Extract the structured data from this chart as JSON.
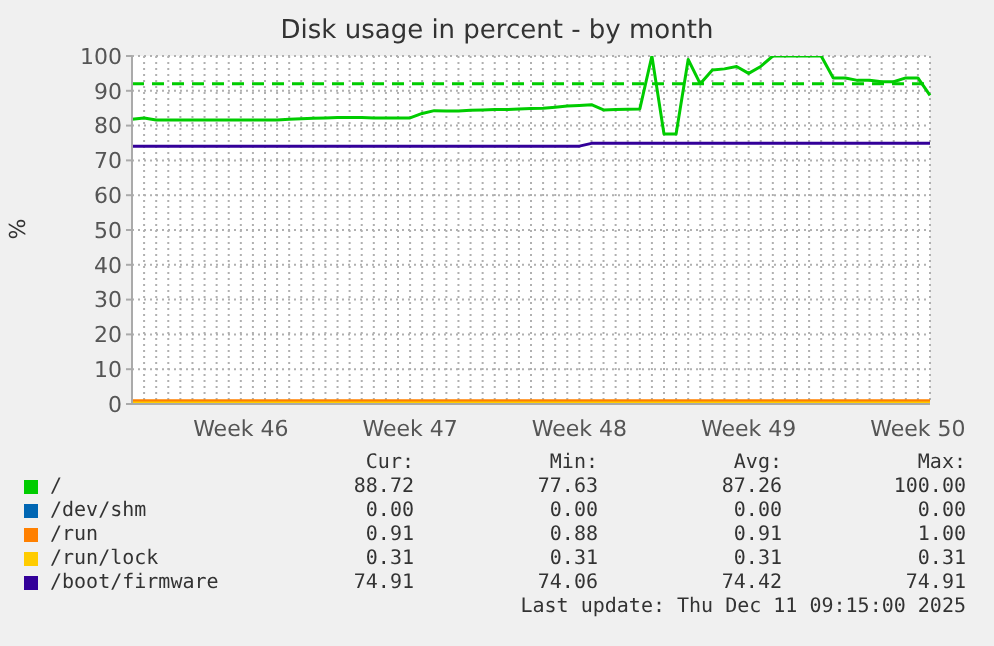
{
  "chart_data": {
    "type": "line",
    "title": "Disk usage in percent - by month",
    "ylabel": "%",
    "categories": [
      null,
      null,
      null,
      null,
      null,
      null,
      null,
      null,
      null,
      "Week 46",
      null,
      null,
      null,
      null,
      null,
      null,
      null,
      null,
      null,
      null,
      null,
      null,
      null,
      "Week 47",
      null,
      null,
      null,
      null,
      null,
      null,
      null,
      null,
      null,
      null,
      null,
      null,
      null,
      "Week 48",
      null,
      null,
      null,
      null,
      null,
      null,
      null,
      null,
      null,
      null,
      null,
      null,
      null,
      "Week 49",
      null,
      null,
      null,
      null,
      null,
      null,
      null,
      null,
      null,
      null,
      null,
      null,
      null,
      "Week 50",
      null
    ],
    "ylim": [
      0,
      100
    ],
    "yticks": [
      0,
      10,
      20,
      30,
      40,
      50,
      60,
      70,
      80,
      90,
      100
    ],
    "grid": true,
    "legend": "bottom",
    "marker": "none",
    "line_style": "solid",
    "ref_lines": [
      {
        "axis": "y",
        "value": 92,
        "color": "#00cc00",
        "line_style": "dashed"
      }
    ],
    "series": [
      {
        "name": "/",
        "color": "#00cc00",
        "values": [
          81.8,
          82.2,
          81.6,
          81.6,
          81.6,
          81.6,
          81.6,
          81.6,
          81.6,
          81.6,
          81.6,
          81.6,
          81.6,
          81.8,
          82,
          82.1,
          82.2,
          82.3,
          82.3,
          82.3,
          82.2,
          82.2,
          82.2,
          82.2,
          83.5,
          84.3,
          84.2,
          84.2,
          84.4,
          84.5,
          84.6,
          84.6,
          84.8,
          84.9,
          85,
          85.3,
          85.6,
          85.8,
          86,
          84.5,
          84.6,
          84.7,
          84.8,
          100,
          77.6,
          77.6,
          99,
          92,
          96,
          96.3,
          97,
          95,
          97,
          100,
          100,
          100,
          100,
          100,
          93.7,
          93.7,
          93,
          93,
          92.6,
          92.6,
          93.7,
          93.7,
          88.7
        ]
      },
      {
        "name": "/dev/shm",
        "color": "#0066b3",
        "values": [
          null,
          null,
          null,
          null,
          null,
          null,
          null,
          null,
          null,
          null,
          null,
          null,
          null,
          null,
          null,
          null,
          null,
          null,
          null,
          null,
          null,
          null,
          null,
          null,
          null,
          null,
          null,
          null,
          null,
          null,
          null,
          null,
          null,
          null,
          null,
          null,
          null,
          null,
          null,
          null,
          null,
          null,
          null,
          null,
          null,
          null,
          null,
          null,
          null,
          null,
          null,
          null,
          null,
          null,
          null,
          null,
          null,
          null,
          null,
          null,
          null,
          null,
          null,
          null,
          null,
          null,
          null
        ]
      },
      {
        "name": "/run",
        "color": "#ff8000",
        "values": [
          0.9,
          0.9,
          0.9,
          0.9,
          0.9,
          0.9,
          0.9,
          0.9,
          0.9,
          0.9,
          0.9,
          0.9,
          0.9,
          0.9,
          0.9,
          0.9,
          0.9,
          0.9,
          0.9,
          0.9,
          0.9,
          0.9,
          0.9,
          0.9,
          0.9,
          0.9,
          0.9,
          0.9,
          0.9,
          0.9,
          0.9,
          0.9,
          0.9,
          0.9,
          0.9,
          0.9,
          0.9,
          0.9,
          0.9,
          0.9,
          0.9,
          0.9,
          0.9,
          0.9,
          0.9,
          0.9,
          0.9,
          0.9,
          0.9,
          0.9,
          0.9,
          0.9,
          0.9,
          0.9,
          0.9,
          0.9,
          0.9,
          0.9,
          0.9,
          0.9,
          0.9,
          0.9,
          0.9,
          0.9,
          0.9,
          0.9,
          0.9
        ]
      },
      {
        "name": "/run/lock",
        "color": "#ffcc00",
        "values": [
          0.3,
          0.3,
          0.3,
          0.3,
          0.3,
          0.3,
          0.3,
          0.3,
          0.3,
          0.3,
          0.3,
          0.3,
          0.3,
          0.3,
          0.3,
          0.3,
          0.3,
          0.3,
          0.3,
          0.3,
          0.3,
          0.3,
          0.3,
          0.3,
          0.3,
          0.3,
          0.3,
          0.3,
          0.3,
          0.3,
          0.3,
          0.3,
          0.3,
          0.3,
          0.3,
          0.3,
          0.3,
          0.3,
          0.3,
          0.3,
          0.3,
          0.3,
          0.3,
          0.3,
          0.3,
          0.3,
          0.3,
          0.3,
          0.3,
          0.3,
          0.3,
          0.3,
          0.3,
          0.3,
          0.3,
          0.3,
          0.3,
          0.3,
          0.3,
          0.3,
          0.3,
          0.3,
          0.3,
          0.3,
          0.3,
          0.3,
          0.3
        ]
      },
      {
        "name": "/boot/firmware",
        "color": "#330099",
        "values": [
          74.1,
          74.1,
          74.1,
          74.1,
          74.1,
          74.1,
          74.1,
          74.1,
          74.1,
          74.1,
          74.1,
          74.1,
          74.1,
          74.1,
          74.1,
          74.1,
          74.1,
          74.1,
          74.1,
          74.1,
          74.1,
          74.1,
          74.1,
          74.1,
          74.1,
          74.1,
          74.1,
          74.1,
          74.1,
          74.1,
          74.1,
          74.1,
          74.1,
          74.1,
          74.1,
          74.1,
          74.1,
          74.1,
          74.9,
          74.9,
          74.9,
          74.9,
          74.9,
          74.9,
          74.9,
          74.9,
          74.9,
          74.9,
          74.9,
          74.9,
          74.9,
          74.9,
          74.9,
          74.9,
          74.9,
          74.9,
          74.9,
          74.9,
          74.9,
          74.9,
          74.9,
          74.9,
          74.9,
          74.9,
          74.9,
          74.9,
          74.9
        ]
      }
    ],
    "annotations": [
      "Cur:",
      "Min:",
      "Avg:",
      "Max:",
      "88.72",
      "77.63",
      "87.26",
      "100.00",
      "0.00",
      "0.00",
      "0.00",
      "0.00",
      "0.91",
      "0.88",
      "0.91",
      "1.00",
      "0.31",
      "0.31",
      "0.31",
      "0.31",
      "74.91",
      "74.06",
      "74.42",
      "74.91",
      "Last update: Thu Dec 11 09:15:00 2025"
    ]
  }
}
